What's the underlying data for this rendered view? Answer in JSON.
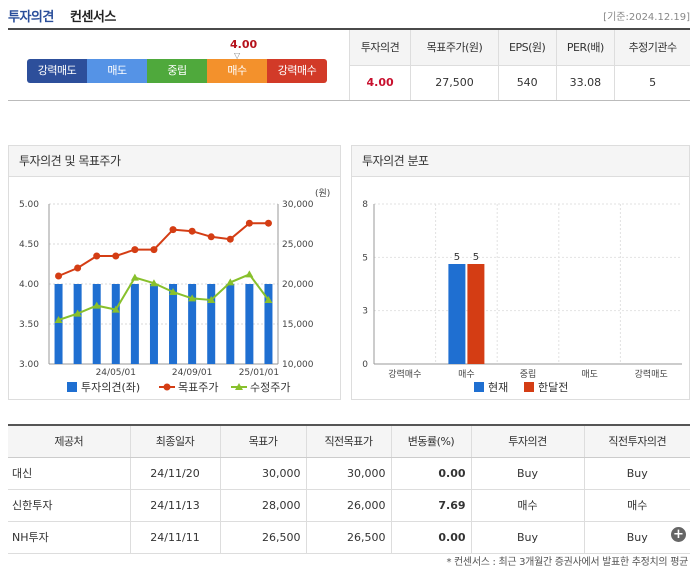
{
  "header": {
    "title": "투자의견",
    "subtitle": "컨센서스",
    "date": "[기준:2024.12.19]"
  },
  "scale": {
    "segments": [
      {
        "label": "강력매도",
        "color": "#2d4f9b"
      },
      {
        "label": "매도",
        "color": "#5593e6"
      },
      {
        "label": "중립",
        "color": "#4fa93c"
      },
      {
        "label": "매수",
        "color": "#f3912c"
      },
      {
        "label": "강력매수",
        "color": "#d23a28"
      }
    ],
    "score": "4.00",
    "score_value": 4.0
  },
  "summary": {
    "headers": [
      "투자의견",
      "목표주가(원)",
      "EPS(원)",
      "PER(배)",
      "추정기관수"
    ],
    "values": [
      "4.00",
      "27,500",
      "540",
      "33.08",
      "5"
    ]
  },
  "chart1": {
    "title": "투자의견 및 목표주가",
    "unit_right": "(원)",
    "legend": [
      "투자의견(좌)",
      "목표주가",
      "수정주가"
    ]
  },
  "chart2": {
    "title": "투자의견 분포",
    "legend": [
      "현재",
      "한달전"
    ]
  },
  "chart_data": [
    {
      "type": "bar",
      "title": "투자의견 및 목표주가",
      "x_ticks": [
        "24/05/01",
        "24/09/01",
        "25/01/01"
      ],
      "ylim_left": [
        3.0,
        5.0
      ],
      "y_ticks_left": [
        "3.00",
        "3.50",
        "4.00",
        "4.50",
        "5.00"
      ],
      "ylim_right": [
        10000,
        30000
      ],
      "y_ticks_right": [
        "10,000",
        "15,000",
        "20,000",
        "25,000",
        "30,000"
      ],
      "grid": true,
      "legend_position": "bottom",
      "series": [
        {
          "name": "투자의견(좌)",
          "axis": "left",
          "kind": "bar",
          "color": "#1f6fd1",
          "values": [
            4.0,
            4.0,
            4.0,
            4.0,
            4.0,
            4.0,
            4.0,
            4.0,
            4.0,
            4.0,
            4.0,
            4.0
          ]
        },
        {
          "name": "목표주가",
          "axis": "right",
          "kind": "line",
          "color": "#d43d14",
          "values": [
            21000,
            22000,
            23500,
            23500,
            24300,
            24300,
            26800,
            26600,
            25900,
            25600,
            27600,
            27600
          ]
        },
        {
          "name": "수정주가",
          "axis": "right",
          "kind": "line",
          "color": "#88c02c",
          "values": [
            15500,
            16300,
            17300,
            16800,
            20800,
            20100,
            19000,
            18200,
            18000,
            20200,
            21200,
            18000
          ]
        }
      ]
    },
    {
      "type": "bar",
      "title": "투자의견 분포",
      "categories": [
        "강력매수",
        "매수",
        "중립",
        "매도",
        "강력매도"
      ],
      "ylim": [
        0,
        8
      ],
      "y_ticks": [
        "0",
        "3",
        "5",
        "8"
      ],
      "legend_position": "bottom",
      "series": [
        {
          "name": "현재",
          "color": "#1f6fd1",
          "values": [
            0,
            5,
            0,
            0,
            0
          ]
        },
        {
          "name": "한달전",
          "color": "#d43d14",
          "values": [
            0,
            5,
            0,
            0,
            0
          ]
        }
      ]
    }
  ],
  "brokers": {
    "headers": [
      "제공처",
      "최종일자",
      "목표가",
      "직전목표가",
      "변동률(%)",
      "투자의견",
      "직전투자의견"
    ],
    "rows": [
      [
        "대신",
        "24/11/20",
        "30,000",
        "30,000",
        "0.00",
        "Buy",
        "Buy"
      ],
      [
        "신한투자",
        "24/11/13",
        "28,000",
        "26,000",
        "7.69",
        "매수",
        "매수"
      ],
      [
        "NH투자",
        "24/11/11",
        "26,500",
        "26,500",
        "0.00",
        "Buy",
        "Buy"
      ]
    ]
  },
  "plus_icon": "+",
  "footnote": "* 컨센서스 : 최근 3개월간 증권사에서 발표한 추정치의 평균"
}
